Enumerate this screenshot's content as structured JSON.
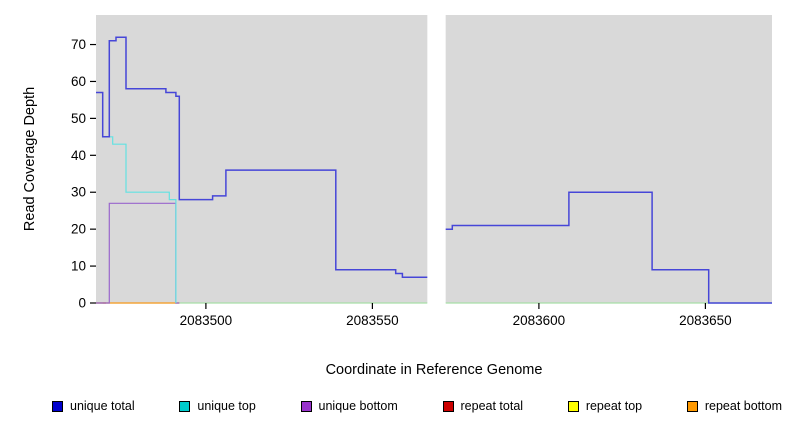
{
  "chart_data": {
    "type": "line",
    "step": true,
    "title": "",
    "xlabel": "Coordinate in Reference Genome",
    "ylabel": "Read Coverage Depth",
    "xlim": [
      2083467,
      2083670
    ],
    "ylim": [
      0,
      78
    ],
    "x_ticks": [
      2083500,
      2083550,
      2083600,
      2083650
    ],
    "y_ticks": [
      0,
      10,
      20,
      30,
      40,
      50,
      60,
      70
    ],
    "grid": false,
    "plot_background": "#d9d9d9",
    "gap_region": {
      "x_start": 2083566.5,
      "x_end": 2083572,
      "color": "#ffffff"
    },
    "legend_position": "bottom",
    "legend": [
      {
        "label": "unique total",
        "color": "#0000cc"
      },
      {
        "label": "unique top",
        "color": "#00cccc"
      },
      {
        "label": "unique bottom",
        "color": "#9933cc"
      },
      {
        "label": "repeat total",
        "color": "#cc0000"
      },
      {
        "label": "repeat top",
        "color": "#ffff00"
      },
      {
        "label": "repeat bottom",
        "color": "#ff9900"
      }
    ],
    "series": [
      {
        "name": "zero-baseline",
        "color": "#a8dfa8",
        "width": 1.2,
        "steps": [
          [
            2083467,
            0
          ],
          [
            2083566.5,
            0
          ],
          [
            2083566.5,
            null
          ],
          [
            2083572,
            0
          ],
          [
            2083670,
            0
          ]
        ]
      },
      {
        "name": "repeat top",
        "color": "#eded4f",
        "width": 1.2,
        "steps": [
          [
            2083467,
            0
          ],
          [
            2083470,
            0
          ]
        ]
      },
      {
        "name": "repeat total",
        "color": "#bb2222",
        "width": 1.2,
        "steps": [
          [
            2083467,
            0
          ],
          [
            2083470,
            0
          ]
        ]
      },
      {
        "name": "repeat bottom",
        "color": "#ff9922",
        "width": 1.2,
        "steps": [
          [
            2083469,
            0
          ],
          [
            2083492,
            0
          ]
        ]
      },
      {
        "name": "unique bottom",
        "color": "#9966cc",
        "width": 1.2,
        "steps": [
          [
            2083467,
            0
          ],
          [
            2083471,
            27
          ],
          [
            2083491,
            0
          ],
          [
            2083492,
            0
          ]
        ]
      },
      {
        "name": "unique top",
        "color": "#63e2e2",
        "width": 1.2,
        "steps": [
          [
            2083469,
            45
          ],
          [
            2083472,
            43
          ],
          [
            2083476,
            30
          ],
          [
            2083489,
            28
          ],
          [
            2083491,
            0
          ]
        ]
      },
      {
        "name": "unique total",
        "color": "#4646d8",
        "width": 1.5,
        "steps": [
          [
            2083467,
            57
          ],
          [
            2083469,
            45
          ],
          [
            2083471,
            71
          ],
          [
            2083473,
            72
          ],
          [
            2083476,
            58
          ],
          [
            2083488,
            57
          ],
          [
            2083491,
            56
          ],
          [
            2083492,
            28
          ],
          [
            2083502,
            29
          ],
          [
            2083506,
            36
          ],
          [
            2083539,
            9
          ],
          [
            2083557,
            8
          ],
          [
            2083559,
            7
          ],
          [
            2083566.5,
            7
          ],
          [
            2083566.5,
            null
          ],
          [
            2083572,
            20
          ],
          [
            2083574,
            21
          ],
          [
            2083609,
            30
          ],
          [
            2083634,
            9
          ],
          [
            2083651,
            0
          ],
          [
            2083670,
            0
          ]
        ]
      }
    ]
  }
}
